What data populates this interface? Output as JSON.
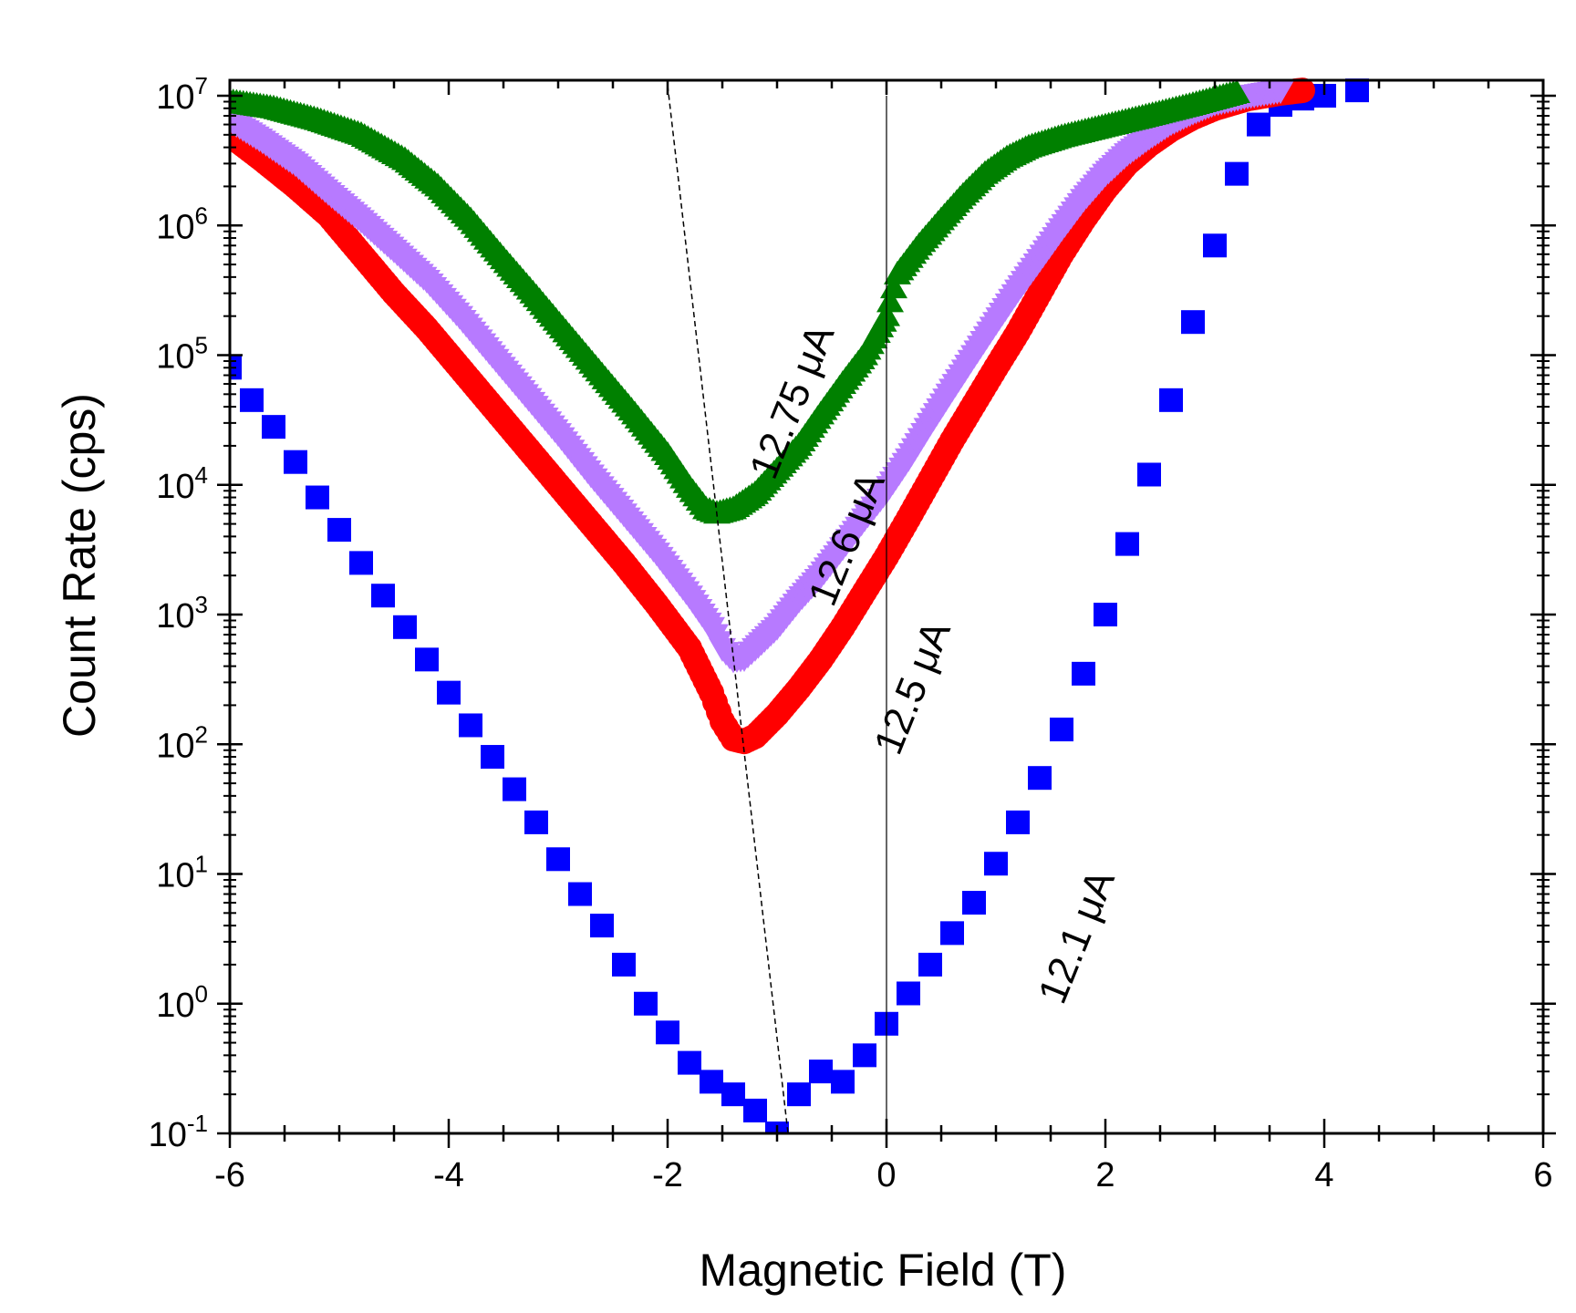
{
  "chart_data": {
    "type": "scatter",
    "title": "",
    "xlabel": "Magnetic Field (T)",
    "ylabel": "Count Rate (cps)",
    "xlim": [
      -6,
      6
    ],
    "ylim": [
      0.1,
      10000000
    ],
    "yscale": "log",
    "x_ticks": [
      -6,
      -4,
      -2,
      0,
      2,
      4,
      6
    ],
    "x_tick_labels": [
      "-6",
      "-4",
      "-2",
      "0",
      "2",
      "4",
      "6"
    ],
    "y_ticks": [
      0.1,
      1,
      10,
      100,
      1000,
      10000,
      100000,
      1000000,
      10000000
    ],
    "y_tick_labels": [
      {
        "base": "10",
        "exp": "-1"
      },
      {
        "base": "10",
        "exp": "0"
      },
      {
        "base": "10",
        "exp": "1"
      },
      {
        "base": "10",
        "exp": "2"
      },
      {
        "base": "10",
        "exp": "3"
      },
      {
        "base": "10",
        "exp": "4"
      },
      {
        "base": "10",
        "exp": "5"
      },
      {
        "base": "10",
        "exp": "6"
      },
      {
        "base": "10",
        "exp": "7"
      }
    ],
    "reference_lines": [
      {
        "name": "zero-field-line",
        "style": "solid",
        "points": [
          [
            0,
            10000000
          ],
          [
            0,
            0.1
          ]
        ]
      },
      {
        "name": "minimum-trend-line",
        "style": "dashed",
        "points": [
          [
            -2.0,
            12000000
          ],
          [
            -0.9,
            0.1
          ]
        ]
      }
    ],
    "series": [
      {
        "name": "12.1 μA",
        "label": "12.1 μA",
        "marker": "square",
        "color": "#0000ff",
        "points": [
          [
            -6.0,
            80000
          ],
          [
            -5.8,
            45000
          ],
          [
            -5.6,
            28000
          ],
          [
            -5.4,
            15000
          ],
          [
            -5.2,
            8000
          ],
          [
            -5.0,
            4500
          ],
          [
            -4.8,
            2500
          ],
          [
            -4.6,
            1400
          ],
          [
            -4.4,
            800
          ],
          [
            -4.2,
            450
          ],
          [
            -4.0,
            250
          ],
          [
            -3.8,
            140
          ],
          [
            -3.6,
            80
          ],
          [
            -3.4,
            45
          ],
          [
            -3.2,
            25
          ],
          [
            -3.0,
            13
          ],
          [
            -2.8,
            7
          ],
          [
            -2.6,
            4
          ],
          [
            -2.4,
            2
          ],
          [
            -2.2,
            1
          ],
          [
            -2.0,
            0.6
          ],
          [
            -1.8,
            0.35
          ],
          [
            -1.6,
            0.25
          ],
          [
            -1.4,
            0.2
          ],
          [
            -1.2,
            0.15
          ],
          [
            -1.0,
            0.1
          ],
          [
            -0.8,
            0.2
          ],
          [
            -0.6,
            0.3
          ],
          [
            -0.4,
            0.25
          ],
          [
            -0.2,
            0.4
          ],
          [
            0.0,
            0.7
          ],
          [
            0.2,
            1.2
          ],
          [
            0.4,
            2
          ],
          [
            0.6,
            3.5
          ],
          [
            0.8,
            6
          ],
          [
            1.0,
            12
          ],
          [
            1.2,
            25
          ],
          [
            1.4,
            55
          ],
          [
            1.6,
            130
          ],
          [
            1.8,
            350
          ],
          [
            2.0,
            1000
          ],
          [
            2.2,
            3500
          ],
          [
            2.4,
            12000
          ],
          [
            2.6,
            45000
          ],
          [
            2.8,
            180000
          ],
          [
            3.0,
            700000
          ],
          [
            3.2,
            2500000
          ],
          [
            3.4,
            6000000
          ],
          [
            3.6,
            8500000
          ],
          [
            3.8,
            9500000
          ],
          [
            4.0,
            10000000
          ],
          [
            4.3,
            11000000
          ]
        ]
      },
      {
        "name": "12.5 μA",
        "label": "12.5 μA",
        "marker": "circle",
        "color": "#ff0000",
        "points": [
          [
            -6.0,
            5000000
          ],
          [
            -5.7,
            3200000
          ],
          [
            -5.4,
            2000000
          ],
          [
            -5.1,
            1200000
          ],
          [
            -4.8,
            600000
          ],
          [
            -4.5,
            300000
          ],
          [
            -4.2,
            160000
          ],
          [
            -3.9,
            80000
          ],
          [
            -3.6,
            40000
          ],
          [
            -3.3,
            20000
          ],
          [
            -3.0,
            10000
          ],
          [
            -2.7,
            5000
          ],
          [
            -2.4,
            2500
          ],
          [
            -2.1,
            1200
          ],
          [
            -1.8,
            550
          ],
          [
            -1.6,
            250
          ],
          [
            -1.5,
            150
          ],
          [
            -1.4,
            110
          ],
          [
            -1.3,
            105
          ],
          [
            -1.2,
            115
          ],
          [
            -1.0,
            170
          ],
          [
            -0.8,
            270
          ],
          [
            -0.6,
            450
          ],
          [
            -0.4,
            800
          ],
          [
            -0.2,
            1500
          ],
          [
            0.0,
            2800
          ],
          [
            0.2,
            5500
          ],
          [
            0.4,
            11000
          ],
          [
            0.6,
            22000
          ],
          [
            0.8,
            42000
          ],
          [
            1.0,
            80000
          ],
          [
            1.2,
            150000
          ],
          [
            1.4,
            300000
          ],
          [
            1.6,
            600000
          ],
          [
            1.8,
            1100000
          ],
          [
            2.0,
            1900000
          ],
          [
            2.2,
            3000000
          ],
          [
            2.4,
            4200000
          ],
          [
            2.6,
            5500000
          ],
          [
            2.8,
            6800000
          ],
          [
            3.0,
            8000000
          ],
          [
            3.3,
            9500000
          ],
          [
            3.6,
            10500000
          ],
          [
            3.8,
            11000000
          ]
        ]
      },
      {
        "name": "12.6 μA",
        "label": "12.6 μA",
        "marker": "triangle-down",
        "color": "#b77aff",
        "points": [
          [
            -6.0,
            6500000
          ],
          [
            -5.7,
            4500000
          ],
          [
            -5.4,
            3000000
          ],
          [
            -5.1,
            1800000
          ],
          [
            -4.8,
            1100000
          ],
          [
            -4.5,
            650000
          ],
          [
            -4.2,
            380000
          ],
          [
            -3.9,
            200000
          ],
          [
            -3.6,
            100000
          ],
          [
            -3.3,
            50000
          ],
          [
            -3.0,
            25000
          ],
          [
            -2.7,
            12000
          ],
          [
            -2.4,
            6000
          ],
          [
            -2.1,
            3000
          ],
          [
            -1.8,
            1400
          ],
          [
            -1.6,
            800
          ],
          [
            -1.5,
            550
          ],
          [
            -1.4,
            450
          ],
          [
            -1.3,
            460
          ],
          [
            -1.2,
            550
          ],
          [
            -1.0,
            800
          ],
          [
            -0.8,
            1300
          ],
          [
            -0.6,
            2000
          ],
          [
            -0.4,
            3300
          ],
          [
            -0.2,
            5500
          ],
          [
            0.0,
            9000
          ],
          [
            0.2,
            16000
          ],
          [
            0.4,
            30000
          ],
          [
            0.6,
            55000
          ],
          [
            0.8,
            100000
          ],
          [
            1.0,
            180000
          ],
          [
            1.2,
            320000
          ],
          [
            1.4,
            550000
          ],
          [
            1.6,
            950000
          ],
          [
            1.8,
            1600000
          ],
          [
            2.0,
            2500000
          ],
          [
            2.2,
            3600000
          ],
          [
            2.4,
            4800000
          ],
          [
            2.6,
            6200000
          ],
          [
            2.8,
            7500000
          ],
          [
            3.0,
            8800000
          ],
          [
            3.3,
            10000000
          ],
          [
            3.6,
            11000000
          ]
        ]
      },
      {
        "name": "12.75 μA",
        "label": "12.75 μA",
        "marker": "triangle-up",
        "color": "#008000",
        "points": [
          [
            -6.0,
            9000000
          ],
          [
            -5.6,
            8000000
          ],
          [
            -5.2,
            6500000
          ],
          [
            -4.8,
            5000000
          ],
          [
            -4.4,
            3200000
          ],
          [
            -4.1,
            2000000
          ],
          [
            -3.8,
            1100000
          ],
          [
            -3.5,
            550000
          ],
          [
            -3.2,
            280000
          ],
          [
            -2.9,
            140000
          ],
          [
            -2.6,
            70000
          ],
          [
            -2.3,
            35000
          ],
          [
            -2.0,
            17000
          ],
          [
            -1.8,
            9500
          ],
          [
            -1.65,
            6500
          ],
          [
            -1.55,
            6000
          ],
          [
            -1.4,
            6500
          ],
          [
            -1.2,
            8500
          ],
          [
            -1.0,
            13000
          ],
          [
            -0.8,
            20000
          ],
          [
            -0.6,
            35000
          ],
          [
            -0.4,
            60000
          ],
          [
            -0.2,
            100000
          ],
          [
            0.0,
            200000
          ],
          [
            0.1,
            420000
          ],
          [
            0.3,
            700000
          ],
          [
            0.5,
            1100000
          ],
          [
            0.7,
            1700000
          ],
          [
            0.9,
            2500000
          ],
          [
            1.1,
            3300000
          ],
          [
            1.3,
            4000000
          ],
          [
            1.6,
            4800000
          ],
          [
            2.0,
            5800000
          ],
          [
            2.4,
            7000000
          ],
          [
            2.8,
            8500000
          ],
          [
            3.2,
            10500000
          ]
        ]
      }
    ],
    "annotations": [
      {
        "text": "12.75 μA",
        "series": "12.75 μA",
        "x": -0.75,
        "y": 40000,
        "rotation_deg": -68
      },
      {
        "text": "12.6 μA",
        "series": "12.6 μA",
        "x": -0.25,
        "y": 3500,
        "rotation_deg": -68
      },
      {
        "text": "12.5 μA",
        "series": "12.5 μA",
        "x": 0.35,
        "y": 250,
        "rotation_deg": -68
      },
      {
        "text": "12.1 μA",
        "series": "12.1 μA",
        "x": 1.85,
        "y": 3,
        "rotation_deg": -68
      }
    ]
  }
}
